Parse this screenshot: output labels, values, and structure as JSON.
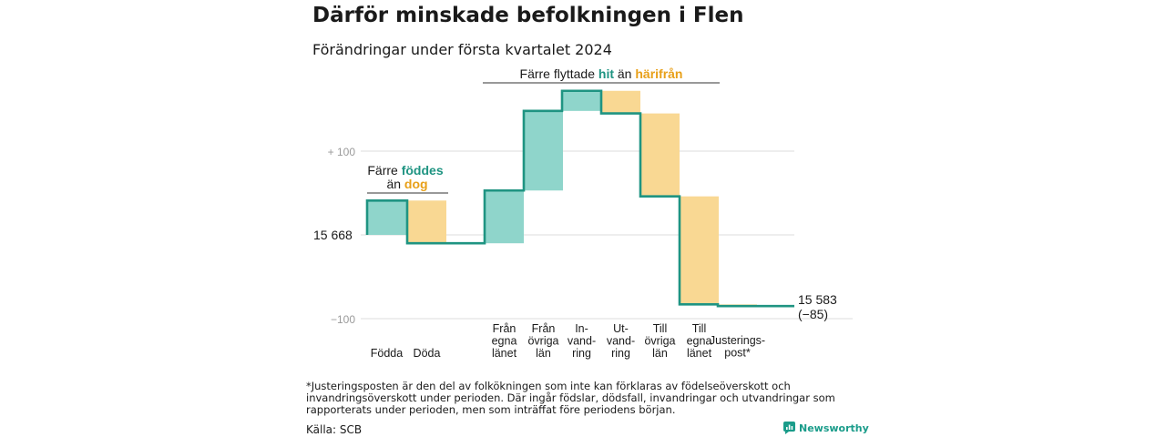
{
  "title": "Därför minskade befolkningen i Flen",
  "subtitle": "Förändringar under första kvartalet 2024",
  "colors": {
    "increase": "#8fd5cb",
    "decrease": "#f9d893",
    "line": "#1f9482",
    "teal_text": "#1f9482",
    "orange_text": "#e8a019",
    "grid": "#dcdcdc",
    "axis_text": "#9a9a9a"
  },
  "chart_data": {
    "type": "waterfall",
    "start": {
      "value": 15668,
      "label": "15  668"
    },
    "end": {
      "value": 15583,
      "label": "15 583",
      "change_label": "(−85)"
    },
    "y_ticks": [
      {
        "value": 100,
        "label": "+  100"
      },
      {
        "value": 0,
        "label": ""
      },
      {
        "value": -100,
        "label": "−100"
      }
    ],
    "ylim": [
      -100,
      185
    ],
    "steps": [
      {
        "label": [
          "Födda"
        ],
        "delta": 41,
        "kind": "increase"
      },
      {
        "label": [
          "Döda"
        ],
        "delta": -51,
        "kind": "decrease"
      },
      {
        "label": [
          "Från",
          "egna",
          "länet"
        ],
        "delta": 63,
        "kind": "increase"
      },
      {
        "label": [
          "Från",
          "övriga",
          "län"
        ],
        "delta": 95,
        "kind": "increase"
      },
      {
        "label": [
          "In-",
          "vand-",
          "ring"
        ],
        "delta": 24,
        "kind": "increase"
      },
      {
        "label": [
          "Ut-",
          "vand-",
          "ring"
        ],
        "delta": -27,
        "kind": "decrease"
      },
      {
        "label": [
          "Till",
          "övriga",
          "län"
        ],
        "delta": -99,
        "kind": "decrease"
      },
      {
        "label": [
          "Till",
          "egna",
          "länet"
        ],
        "delta": -129,
        "kind": "decrease"
      },
      {
        "label": [
          "Justerings-",
          "post*"
        ],
        "delta": -2,
        "kind": "decrease"
      }
    ],
    "annotations": [
      {
        "id": "births",
        "line1_prefix": "Färre ",
        "line1_highlight": "föddes",
        "line2_prefix": "än ",
        "line2_highlight": "dog"
      },
      {
        "id": "migration",
        "prefix": "Färre flyttade ",
        "highlight1": "hit",
        "middle": " än ",
        "highlight2": "härifrån"
      }
    ]
  },
  "footnote": "*Justeringsposten är den del av folkökningen som inte kan förklaras av födelseöverskott och invandringsöverskott under perioden. Där ingår födslar, dödsfall, invandringar och utvandringar som rapporterats under perioden, men som inträffat före periodens början.",
  "source": "Källa: SCB",
  "brand": {
    "name": "Newsworthy",
    "icon": "newsworthy-logo-icon"
  }
}
